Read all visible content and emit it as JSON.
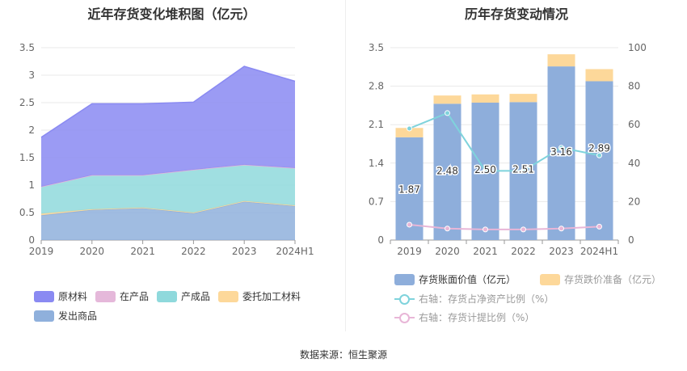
{
  "source_label": "数据来源：恒生聚源",
  "chart_data": [
    {
      "type": "area",
      "stacked": true,
      "title": "近年存货变化堆积图（亿元）",
      "categories": [
        "2019",
        "2020",
        "2021",
        "2022",
        "2023",
        "2024H1"
      ],
      "ylim": [
        0,
        3.5
      ],
      "yticks": [
        "0",
        "0.5",
        "1",
        "1.5",
        "2",
        "2.5",
        "3",
        "3.5"
      ],
      "grid": true,
      "legend_position": "bottom-left",
      "series": [
        {
          "name": "发出商品",
          "color": "#8fb0dc",
          "values": [
            0.45,
            0.55,
            0.58,
            0.49,
            0.7,
            0.62
          ]
        },
        {
          "name": "委托加工材料",
          "color": "#fdd89a",
          "values": [
            0.03,
            0.01,
            0.01,
            0.01,
            0.01,
            0.01
          ]
        },
        {
          "name": "产成品",
          "color": "#8fd9dc",
          "values": [
            0.49,
            0.62,
            0.59,
            0.78,
            0.66,
            0.68
          ]
        },
        {
          "name": "在产品",
          "color": "#e5b8da",
          "values": [
            0.0,
            0.0,
            0.0,
            0.0,
            0.0,
            0.0
          ]
        },
        {
          "name": "原材料",
          "color": "#8a8af2",
          "values": [
            0.9,
            1.3,
            1.3,
            1.23,
            1.79,
            1.58
          ]
        }
      ],
      "legend_order": [
        "原材料",
        "在产品",
        "产成品",
        "委托加工材料",
        "发出商品"
      ]
    },
    {
      "type": "bar",
      "title": "历年存货变动情况",
      "categories": [
        "2019",
        "2020",
        "2021",
        "2022",
        "2023",
        "2024H1"
      ],
      "ylim": [
        0,
        3.5
      ],
      "yticks": [
        "0",
        "0.7",
        "1.4",
        "2.1",
        "2.8",
        "3.5"
      ],
      "y2lim": [
        0,
        100
      ],
      "y2ticks": [
        "0",
        "20",
        "40",
        "60",
        "80",
        "100"
      ],
      "grid": true,
      "legend_position": "bottom",
      "series": [
        {
          "name": "存货账面价值（亿元）",
          "kind": "bar",
          "axis": "left",
          "color": "#8eaedb",
          "values": [
            1.87,
            2.48,
            2.5,
            2.51,
            3.16,
            2.89
          ],
          "labels": [
            "1.87",
            "2.48",
            "2.50",
            "2.51",
            "3.16",
            "2.89"
          ]
        },
        {
          "name": "存货跌价准备（亿元）",
          "kind": "bar-stack",
          "axis": "left",
          "color": "#fdd89a",
          "values": [
            0.17,
            0.15,
            0.15,
            0.15,
            0.22,
            0.22
          ]
        },
        {
          "name": "右轴：存货占净资产比例（%）",
          "kind": "line",
          "axis": "right",
          "color": "#7fd3dc",
          "values": [
            58,
            66,
            36,
            36,
            48,
            44
          ]
        },
        {
          "name": "右轴：存货计提比例（%）",
          "kind": "line",
          "axis": "right",
          "color": "#e8b6d7",
          "values": [
            8,
            6,
            5.5,
            5.5,
            6,
            7
          ]
        }
      ]
    }
  ]
}
